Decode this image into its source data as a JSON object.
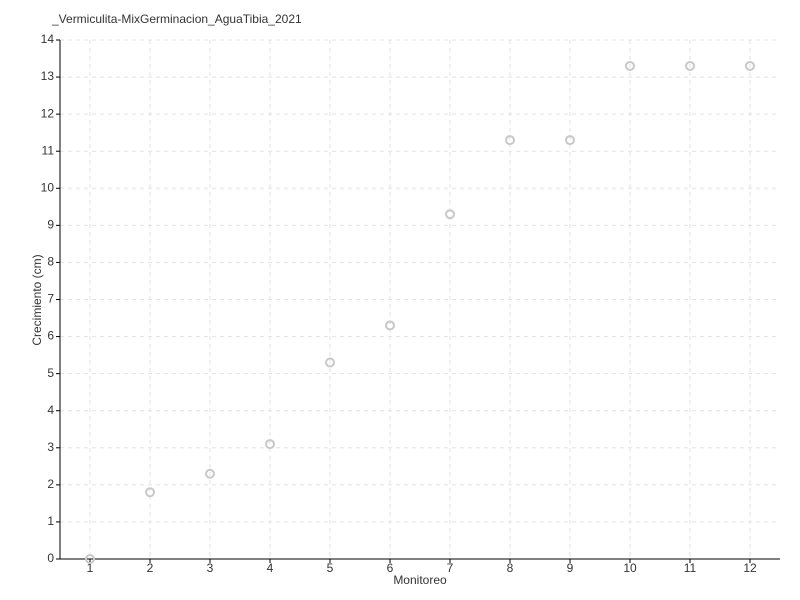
{
  "chart_data": {
    "type": "scatter",
    "title": "_Vermiculita-MixGerminacion_AguaTibia_2021",
    "x_label": "Monitoreo",
    "y_label": "Crecimiento (cm)",
    "x": [
      1,
      2,
      3,
      4,
      5,
      6,
      7,
      8,
      9,
      10,
      11,
      12
    ],
    "values": [
      0,
      1.8,
      2.3,
      3.1,
      5.3,
      6.3,
      9.3,
      11.3,
      11.3,
      13.3,
      13.3,
      13.3
    ],
    "color": "#c8c8c8",
    "xlim": [
      0.5,
      12.5
    ],
    "xticks": [
      1,
      2,
      3,
      4,
      5,
      6,
      7,
      8,
      9,
      10,
      11,
      12
    ],
    "ylim": [
      0,
      14
    ],
    "yticks": [
      0,
      1,
      2,
      3,
      4,
      5,
      6,
      7,
      8,
      9,
      10,
      11,
      12,
      13,
      14
    ],
    "grid": true
  }
}
